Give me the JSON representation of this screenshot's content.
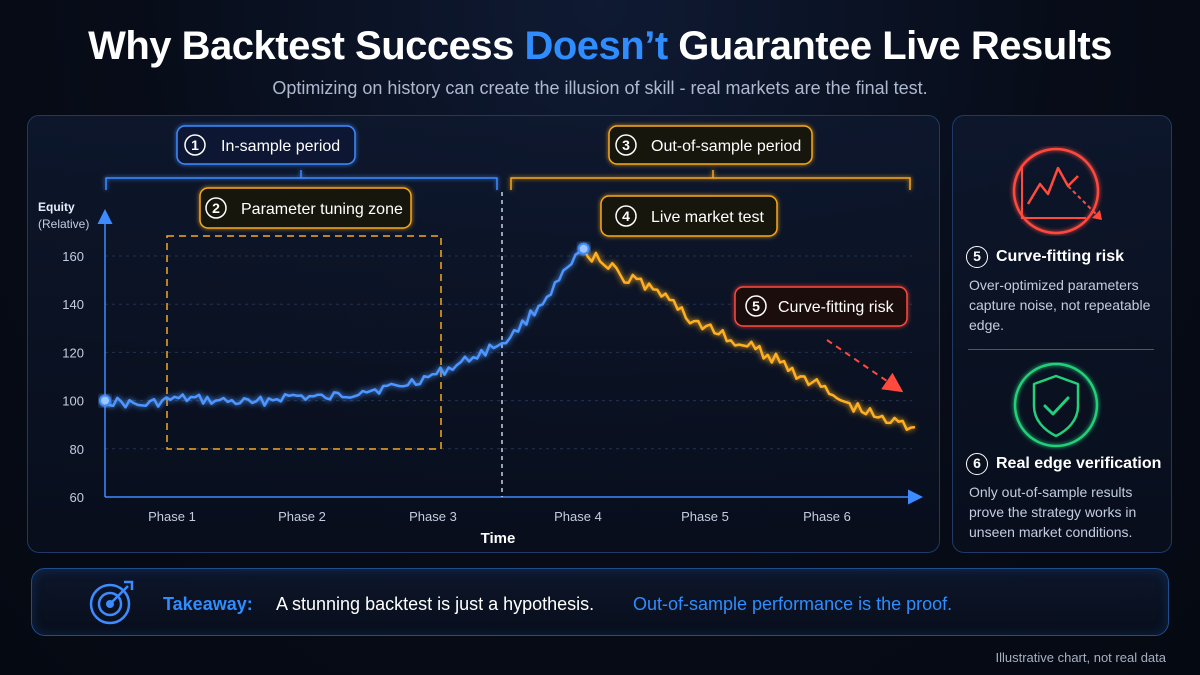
{
  "header": {
    "title_part1": "Why Backtest Success ",
    "title_highlight": "Doesn’t",
    "title_part2": " Guarantee Live Results",
    "subtitle": "Optimizing on history can create the illusion of skill - real markets are the final test."
  },
  "chart_data": {
    "type": "line",
    "xlabel": "Time",
    "ylabel": "Equity",
    "ylabel_sub": "(Relative)",
    "ylim": [
      60,
      170
    ],
    "yticks": [
      60,
      80,
      100,
      120,
      140,
      160
    ],
    "categories": [
      "Phase 1",
      "Phase 2",
      "Phase 3",
      "Phase 4",
      "Phase 5",
      "Phase 6"
    ],
    "x_range": [
      0,
      6.6
    ],
    "grid": true,
    "series": [
      {
        "color": "#3d8bff",
        "x": [
          0.0,
          0.3,
          0.6,
          0.9,
          1.2,
          1.5,
          1.8,
          2.1,
          2.4,
          2.7,
          3.0,
          3.3,
          3.6,
          3.9
        ],
        "values": [
          100,
          98,
          101,
          100,
          99,
          102,
          101,
          104,
          106,
          111,
          118,
          126,
          143,
          163
        ]
      },
      {
        "color": "#f7a81b",
        "x": [
          3.9,
          4.2,
          4.5,
          4.8,
          5.1,
          5.4,
          5.7,
          6.0,
          6.3,
          6.6
        ],
        "values": [
          163,
          152,
          146,
          133,
          125,
          119,
          110,
          100,
          93,
          89
        ]
      }
    ],
    "annotations": {
      "in_sample": "In-sample period",
      "tuning_zone": "Parameter tuning zone",
      "out_of_sample": "Out-of-sample period",
      "live_test": "Live market test",
      "curve_fitting": "Curve-fitting risk"
    },
    "markers": {
      "in_sample": "1",
      "tuning_zone": "2",
      "out_of_sample": "3",
      "live_test": "4",
      "curve_fitting": "5"
    }
  },
  "side": {
    "curve": {
      "number": "5",
      "title": "Curve-fitting risk",
      "text": "Over-optimized parameters capture noise, not repeatable edge.",
      "icon": "declining-chart-icon",
      "color": "#ff4a3d"
    },
    "edge": {
      "number": "6",
      "title": "Real edge verification",
      "text": "Only out-of-sample results prove the strategy works in unseen market conditions.",
      "icon": "shield-check-icon",
      "color": "#22d07a"
    }
  },
  "takeaway": {
    "label": "Takeaway:",
    "text": "A stunning backtest is just a hypothesis.",
    "highlight": "Out-of-sample performance is the proof.",
    "icon": "target-icon"
  },
  "footnote": "Illustrative chart, not real data"
}
